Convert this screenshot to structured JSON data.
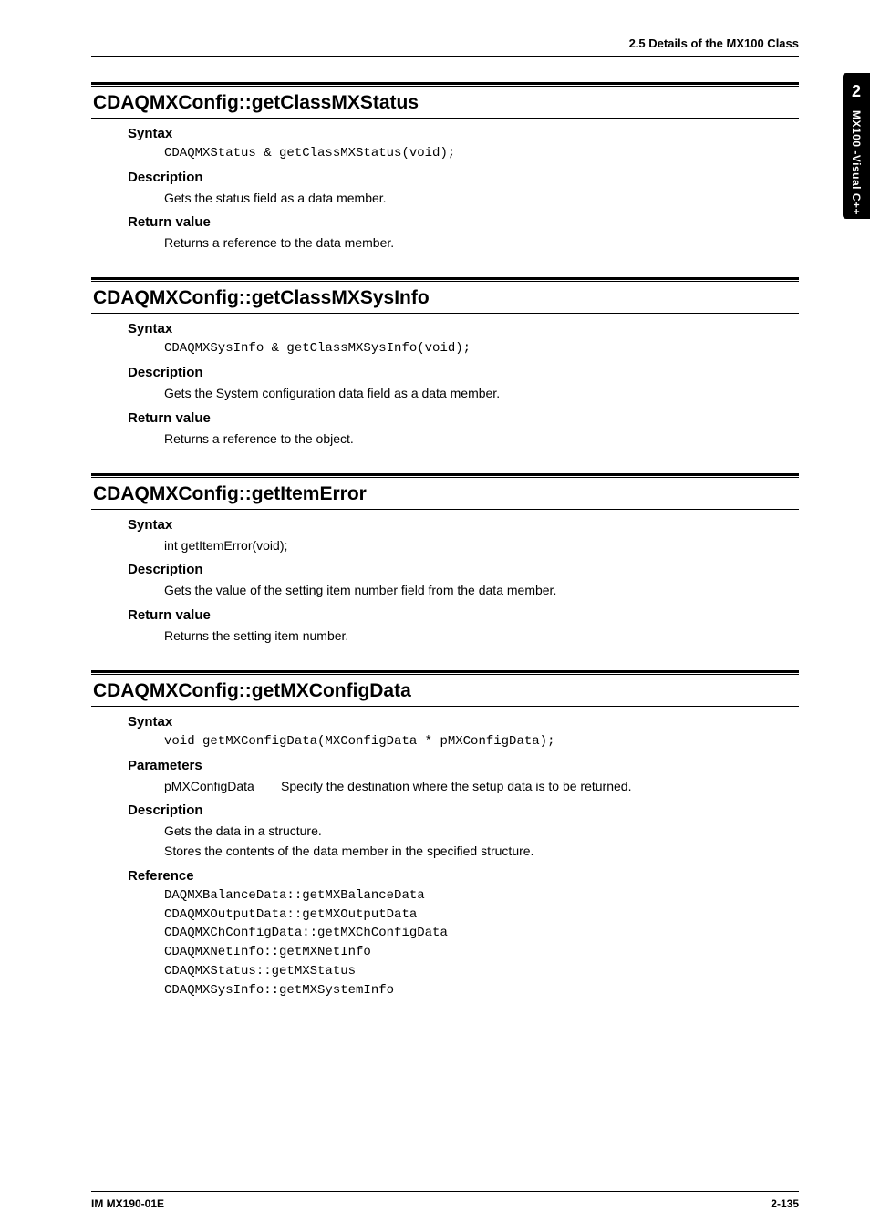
{
  "header": {
    "section_ref": "2.5  Details of the MX100 Class"
  },
  "tab": {
    "chapter_number": "2",
    "label": "MX100 -Visual  C++"
  },
  "sections": [
    {
      "title": "CDAQMXConfig::getClassMXStatus",
      "blocks": [
        {
          "heading": "Syntax",
          "kind": "code",
          "lines": [
            "CDAQMXStatus & getClassMXStatus(void);"
          ]
        },
        {
          "heading": "Description",
          "kind": "text",
          "lines": [
            "Gets the status field as a data member."
          ]
        },
        {
          "heading": "Return value",
          "kind": "text",
          "lines": [
            "Returns a reference to the data member."
          ]
        }
      ]
    },
    {
      "title": "CDAQMXConfig::getClassMXSysInfo",
      "blocks": [
        {
          "heading": "Syntax",
          "kind": "code",
          "lines": [
            "CDAQMXSysInfo & getClassMXSysInfo(void);"
          ]
        },
        {
          "heading": "Description",
          "kind": "text",
          "lines": [
            "Gets the System configuration data field as a data member."
          ]
        },
        {
          "heading": "Return value",
          "kind": "text",
          "lines": [
            "Returns a reference to the object."
          ]
        }
      ]
    },
    {
      "title": "CDAQMXConfig::getItemError",
      "blocks": [
        {
          "heading": "Syntax",
          "kind": "text",
          "lines": [
            "int getItemError(void);"
          ]
        },
        {
          "heading": "Description",
          "kind": "text",
          "lines": [
            "Gets the value of the setting item number field from the data member."
          ]
        },
        {
          "heading": "Return value",
          "kind": "text",
          "lines": [
            "Returns the setting item number."
          ]
        }
      ]
    },
    {
      "title": "CDAQMXConfig::getMXConfigData",
      "blocks": [
        {
          "heading": "Syntax",
          "kind": "code",
          "lines": [
            "void getMXConfigData(MXConfigData * pMXConfigData);"
          ]
        },
        {
          "heading": "Parameters",
          "kind": "param",
          "params": [
            {
              "name": "pMXConfigData",
              "desc": "Specify the destination where the setup data is to be returned."
            }
          ]
        },
        {
          "heading": "Description",
          "kind": "text",
          "lines": [
            "Gets the data in a structure.",
            "Stores the contents of the data member in the specified structure."
          ]
        },
        {
          "heading": "Reference",
          "kind": "code",
          "lines": [
            "DAQMXBalanceData::getMXBalanceData",
            "CDAQMXOutputData::getMXOutputData",
            "CDAQMXChConfigData::getMXChConfigData",
            "CDAQMXNetInfo::getMXNetInfo",
            "CDAQMXStatus::getMXStatus",
            "CDAQMXSysInfo::getMXSystemInfo"
          ]
        }
      ]
    }
  ],
  "footer": {
    "doc_id": "IM MX190-01E",
    "page_number": "2-135"
  }
}
